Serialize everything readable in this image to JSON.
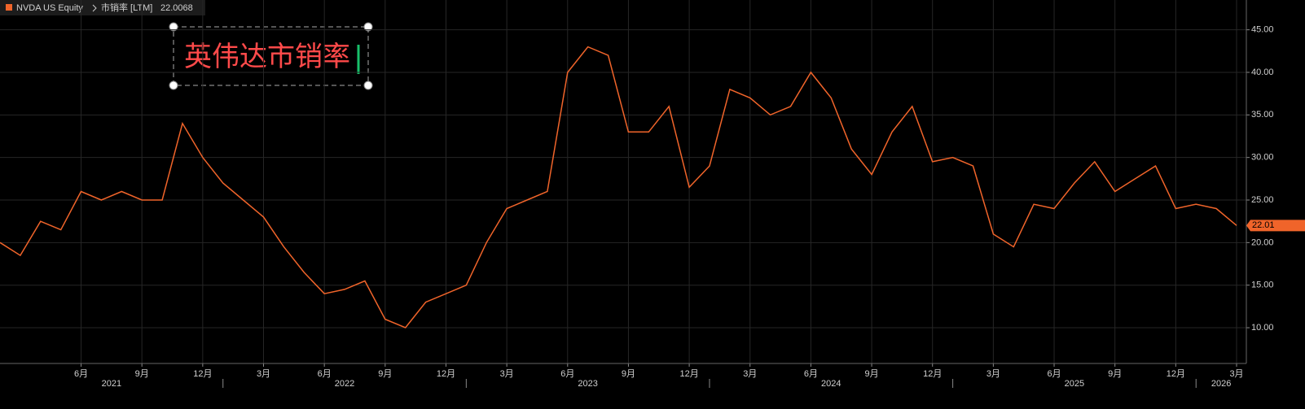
{
  "chart_data": {
    "type": "line",
    "series": [
      {
        "name": "NVDA US Equity",
        "color": "#f0642a",
        "x": [
          "2021-02",
          "2021-03",
          "2021-04",
          "2021-05",
          "2021-06",
          "2021-07",
          "2021-08",
          "2021-09",
          "2021-10",
          "2021-11",
          "2021-12",
          "2022-01",
          "2022-02",
          "2022-03",
          "2022-04",
          "2022-05",
          "2022-06",
          "2022-07",
          "2022-08",
          "2022-09",
          "2022-10",
          "2022-11",
          "2022-12",
          "2023-01",
          "2023-02",
          "2023-03",
          "2023-04",
          "2023-05",
          "2023-06",
          "2023-07",
          "2023-08",
          "2023-09",
          "2023-10",
          "2023-11",
          "2023-12",
          "2024-01",
          "2024-02",
          "2024-03",
          "2024-04",
          "2024-05",
          "2024-06",
          "2024-07",
          "2024-08",
          "2024-09",
          "2024-10",
          "2024-11",
          "2024-12",
          "2025-01",
          "2025-02",
          "2025-03",
          "2025-04",
          "2025-05",
          "2025-06",
          "2025-07",
          "2025-08",
          "2025-09",
          "2025-10",
          "2025-11",
          "2025-12",
          "2026-01",
          "2026-02",
          "2026-03"
        ],
        "values": [
          20,
          18.5,
          22.5,
          21.5,
          26,
          25,
          26,
          25,
          25,
          34,
          30,
          27,
          25,
          23,
          19.5,
          16.5,
          14,
          14.5,
          15.5,
          11,
          10,
          13,
          14,
          15,
          20,
          24,
          25,
          26,
          40,
          43,
          42,
          33,
          33,
          36,
          26.5,
          29,
          38,
          37,
          35,
          36,
          40,
          37,
          31,
          28,
          33,
          36,
          29.5,
          30,
          29,
          21,
          19.5,
          24.5,
          24,
          27,
          29.5,
          26,
          27.5,
          29,
          24,
          24.5,
          24,
          22.0068
        ]
      }
    ],
    "subtitle": "市销率 [LTM]",
    "annotation": "英伟达市销率",
    "last_value_label": "22.01",
    "xlim": [
      "2021-02",
      "2026-03"
    ],
    "xticks": [
      {
        "value": "2021-06",
        "label": "6月"
      },
      {
        "value": "2021-09",
        "label": "9月"
      },
      {
        "value": "2021-12",
        "label": "12月"
      },
      {
        "value": "2022-03",
        "label": "3月"
      },
      {
        "value": "2022-06",
        "label": "6月"
      },
      {
        "value": "2022-09",
        "label": "9月"
      },
      {
        "value": "2022-12",
        "label": "12月"
      },
      {
        "value": "2023-03",
        "label": "3月"
      },
      {
        "value": "2023-06",
        "label": "6月"
      },
      {
        "value": "2023-09",
        "label": "9月"
      },
      {
        "value": "2023-12",
        "label": "12月"
      },
      {
        "value": "2024-03",
        "label": "3月"
      },
      {
        "value": "2024-06",
        "label": "6月"
      },
      {
        "value": "2024-09",
        "label": "9月"
      },
      {
        "value": "2024-12",
        "label": "12月"
      },
      {
        "value": "2025-03",
        "label": "3月"
      },
      {
        "value": "2025-06",
        "label": "6月"
      },
      {
        "value": "2025-09",
        "label": "9月"
      },
      {
        "value": "2025-12",
        "label": "12月"
      },
      {
        "value": "2026-03",
        "label": "3月"
      }
    ],
    "years": [
      "2021",
      "2022",
      "2023",
      "2024",
      "2025",
      "2026"
    ],
    "ylim": [
      5.8,
      48.5
    ],
    "yticks": [
      {
        "value": 10,
        "label": "10.00"
      },
      {
        "value": 15,
        "label": "15.00"
      },
      {
        "value": 20,
        "label": "20.00"
      },
      {
        "value": 25,
        "label": "25.00"
      },
      {
        "value": 30,
        "label": "30.00"
      },
      {
        "value": 35,
        "label": "35.00"
      },
      {
        "value": 40,
        "label": "40.00"
      },
      {
        "value": 45,
        "label": "45.00"
      }
    ],
    "grid": true
  }
}
